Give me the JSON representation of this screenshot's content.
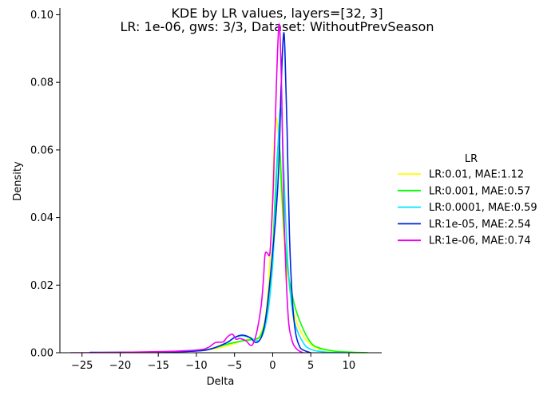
{
  "chart_data": {
    "type": "line",
    "title": "KDE by LR values, layers=[32, 3]",
    "subtitle": "LR: 1e-06, gws: 3/3, Dataset: WithoutPrevSeason",
    "xlabel": "Delta",
    "ylabel": "Density",
    "xlim": [
      -27.9,
      14.3
    ],
    "ylim": [
      0,
      0.102
    ],
    "xticks": [
      -25,
      -20,
      -15,
      -10,
      -5,
      0,
      5,
      10
    ],
    "xtick_labels": [
      "−25",
      "−20",
      "−15",
      "−10",
      "−5",
      "0",
      "5",
      "10"
    ],
    "yticks": [
      0.0,
      0.02,
      0.04,
      0.06,
      0.08,
      0.1
    ],
    "ytick_labels": [
      "0.00",
      "0.02",
      "0.04",
      "0.06",
      "0.08",
      "0.10"
    ],
    "grid": false,
    "legend": {
      "title": "LR",
      "placement": "right"
    },
    "series": [
      {
        "name": "LR:0.01, MAE:1.12",
        "color": "#ffff00",
        "x": [
          -24,
          -15,
          -10,
          -8,
          -6,
          -4,
          -3,
          -2,
          -1.5,
          -1,
          -0.6,
          -0.3,
          0,
          0.2,
          0.4,
          0.6,
          0.8,
          1.0,
          1.2,
          1.6,
          2.0,
          2.5,
          3,
          4,
          5,
          6,
          8,
          10,
          12.5
        ],
        "y": [
          0,
          0.0002,
          0.0006,
          0.001,
          0.002,
          0.0035,
          0.004,
          0.004,
          0.006,
          0.01,
          0.018,
          0.03,
          0.048,
          0.062,
          0.069,
          0.068,
          0.063,
          0.055,
          0.045,
          0.03,
          0.022,
          0.015,
          0.01,
          0.005,
          0.0025,
          0.0012,
          0.0004,
          0.0001,
          0
        ]
      },
      {
        "name": "LR:0.001, MAE:0.57",
        "color": "#00ff00",
        "x": [
          -24,
          -15,
          -10,
          -8,
          -6,
          -4,
          -3,
          -2,
          -1.5,
          -1,
          -0.5,
          0,
          0.3,
          0.6,
          0.8,
          1.0,
          1.2,
          1.5,
          2.0,
          2.5,
          3,
          4,
          5,
          6,
          8,
          10,
          12.5
        ],
        "y": [
          0,
          0.0002,
          0.0006,
          0.0012,
          0.0025,
          0.0035,
          0.0038,
          0.0042,
          0.0055,
          0.009,
          0.017,
          0.03,
          0.045,
          0.058,
          0.062,
          0.058,
          0.048,
          0.036,
          0.024,
          0.018,
          0.013,
          0.007,
          0.003,
          0.0015,
          0.0005,
          0.0002,
          0
        ]
      },
      {
        "name": "LR:0.0001, MAE:0.59",
        "color": "#00e5ff",
        "x": [
          -24,
          -15,
          -10,
          -8,
          -6,
          -5,
          -4,
          -3,
          -2,
          -1.5,
          -1,
          -0.5,
          0,
          0.3,
          0.6,
          0.8,
          1.0,
          1.2,
          1.4,
          1.7,
          2.0,
          2.5,
          3,
          4,
          5,
          7,
          10
        ],
        "y": [
          0,
          0.0002,
          0.0005,
          0.0012,
          0.003,
          0.0045,
          0.005,
          0.0045,
          0.0035,
          0.0045,
          0.0075,
          0.014,
          0.026,
          0.04,
          0.056,
          0.066,
          0.072,
          0.07,
          0.058,
          0.04,
          0.026,
          0.014,
          0.008,
          0.003,
          0.001,
          0.0002,
          0
        ]
      },
      {
        "name": "LR:1e-05, MAE:2.54",
        "color": "#0022dd",
        "x": [
          -24,
          -15,
          -10,
          -8,
          -6,
          -5,
          -4,
          -3,
          -2.2,
          -1.5,
          -1,
          -0.5,
          0,
          0.4,
          0.8,
          1.1,
          1.4,
          1.6,
          1.9,
          2.2,
          2.6,
          3,
          3.5,
          4,
          5
        ],
        "y": [
          0.0001,
          0.0002,
          0.0005,
          0.0012,
          0.003,
          0.0045,
          0.0052,
          0.0045,
          0.003,
          0.0045,
          0.009,
          0.018,
          0.03,
          0.04,
          0.055,
          0.078,
          0.0935,
          0.09,
          0.065,
          0.035,
          0.015,
          0.006,
          0.002,
          0.0008,
          0
        ]
      },
      {
        "name": "LR:1e-06, MAE:0.74",
        "color": "#ee00ee",
        "x": [
          -26.5,
          -24,
          -15,
          -10,
          -8.5,
          -7.5,
          -6.5,
          -6,
          -5.3,
          -4.8,
          -4.3,
          -3.5,
          -2.9,
          -2.5,
          -2.0,
          -1.5,
          -1.2,
          -1.0,
          -0.7,
          -0.4,
          -0.2,
          0.1,
          0.5,
          0.8,
          1.0,
          1.2,
          1.5,
          2.0,
          2.5,
          3.0,
          3.5,
          4.0
        ],
        "y": [
          0,
          0,
          0.0003,
          0.0008,
          0.0015,
          0.003,
          0.0032,
          0.0045,
          0.0055,
          0.004,
          0.0042,
          0.0035,
          0.0022,
          0.003,
          0.007,
          0.014,
          0.022,
          0.029,
          0.0295,
          0.029,
          0.035,
          0.05,
          0.08,
          0.0965,
          0.092,
          0.075,
          0.04,
          0.012,
          0.004,
          0.0015,
          0.0005,
          0
        ]
      }
    ]
  }
}
